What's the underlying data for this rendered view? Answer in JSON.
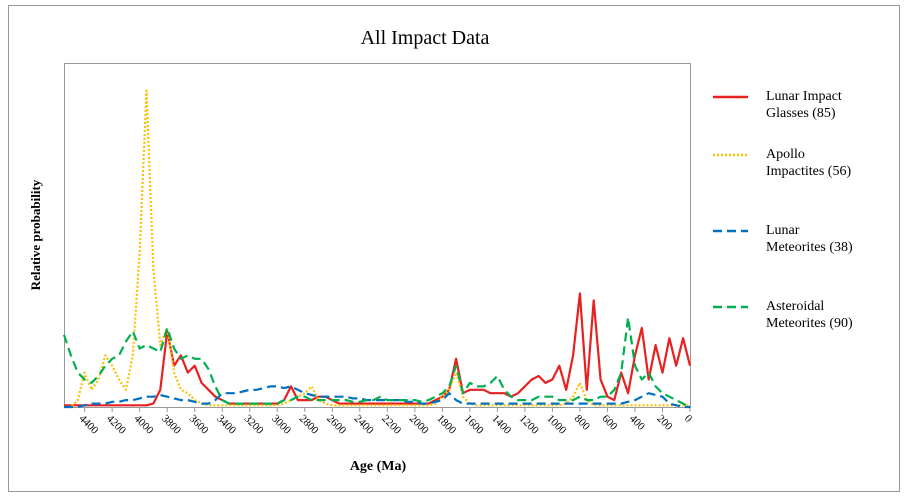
{
  "chart_data": {
    "type": "line",
    "title": "All Impact Data",
    "x_label": "Age (Ma)",
    "y_label": "Relative probability",
    "x": [
      4550,
      4500,
      4450,
      4400,
      4350,
      4300,
      4250,
      4200,
      4150,
      4100,
      4050,
      4000,
      3950,
      3900,
      3850,
      3800,
      3750,
      3700,
      3650,
      3600,
      3550,
      3500,
      3450,
      3400,
      3350,
      3300,
      3250,
      3200,
      3150,
      3100,
      3050,
      3000,
      2950,
      2900,
      2850,
      2800,
      2750,
      2700,
      2650,
      2600,
      2550,
      2500,
      2450,
      2400,
      2350,
      2300,
      2250,
      2200,
      2150,
      2100,
      2050,
      2000,
      1950,
      1900,
      1850,
      1800,
      1750,
      1700,
      1650,
      1600,
      1550,
      1500,
      1450,
      1400,
      1350,
      1300,
      1250,
      1200,
      1150,
      1100,
      1050,
      1000,
      950,
      900,
      850,
      800,
      750,
      700,
      650,
      600,
      550,
      500,
      450,
      400,
      350,
      300,
      250,
      200,
      150,
      100,
      50,
      0
    ],
    "series": [
      {
        "name": "Lunar Impact Glasses (85)",
        "color": "#e8201f",
        "linestyle": "solid",
        "values": [
          0.005,
          0.005,
          0.005,
          0.005,
          0.005,
          0.005,
          0.005,
          0.005,
          0.005,
          0.005,
          0.005,
          0.005,
          0.005,
          0.01,
          0.05,
          0.22,
          0.12,
          0.15,
          0.1,
          0.12,
          0.07,
          0.05,
          0.03,
          0.02,
          0.01,
          0.01,
          0.01,
          0.01,
          0.01,
          0.01,
          0.01,
          0.01,
          0.02,
          0.06,
          0.02,
          0.02,
          0.02,
          0.03,
          0.03,
          0.02,
          0.01,
          0.01,
          0.01,
          0.01,
          0.01,
          0.01,
          0.01,
          0.01,
          0.01,
          0.01,
          0.01,
          0.01,
          0.01,
          0.01,
          0.02,
          0.03,
          0.05,
          0.14,
          0.04,
          0.05,
          0.05,
          0.05,
          0.04,
          0.04,
          0.04,
          0.03,
          0.04,
          0.06,
          0.08,
          0.09,
          0.07,
          0.08,
          0.12,
          0.05,
          0.15,
          0.33,
          0.05,
          0.31,
          0.08,
          0.03,
          0.02,
          0.1,
          0.04,
          0.15,
          0.23,
          0.08,
          0.18,
          0.1,
          0.2,
          0.12,
          0.2,
          0.12
        ]
      },
      {
        "name": "Apollo Impactites (56)",
        "color": "#ffc000",
        "linestyle": "dotted",
        "values": [
          0,
          0,
          0.02,
          0.1,
          0.05,
          0.08,
          0.15,
          0.12,
          0.08,
          0.05,
          0.15,
          0.45,
          0.92,
          0.4,
          0.18,
          0.23,
          0.1,
          0.05,
          0.04,
          0.02,
          0.01,
          0.005,
          0.005,
          0.005,
          0.005,
          0.005,
          0.005,
          0.005,
          0.005,
          0.005,
          0.005,
          0.005,
          0.01,
          0.02,
          0.03,
          0.04,
          0.06,
          0.02,
          0.01,
          0.005,
          0.005,
          0.005,
          0.005,
          0.005,
          0.005,
          0.005,
          0.005,
          0.005,
          0.005,
          0.005,
          0.005,
          0.005,
          0.005,
          0.005,
          0.01,
          0.03,
          0.05,
          0.1,
          0.03,
          0.01,
          0.005,
          0.005,
          0.005,
          0.005,
          0.005,
          0.005,
          0.005,
          0.005,
          0.005,
          0.005,
          0.005,
          0.005,
          0.005,
          0.01,
          0.03,
          0.07,
          0.02,
          0.005,
          0.005,
          0.005,
          0.005,
          0.005,
          0.005,
          0.005,
          0.005,
          0.005,
          0.005,
          0.005,
          0.005,
          0.005,
          0.005,
          0.005
        ]
      },
      {
        "name": "Lunar Meteorites (38)",
        "color": "#0070c0",
        "linestyle": "dashed",
        "values": [
          0,
          0,
          0,
          0.005,
          0.01,
          0.01,
          0.01,
          0.015,
          0.015,
          0.02,
          0.02,
          0.025,
          0.03,
          0.03,
          0.035,
          0.03,
          0.025,
          0.02,
          0.02,
          0.015,
          0.01,
          0.01,
          0.02,
          0.04,
          0.04,
          0.04,
          0.045,
          0.05,
          0.05,
          0.055,
          0.06,
          0.06,
          0.055,
          0.06,
          0.05,
          0.04,
          0.035,
          0.03,
          0.03,
          0.03,
          0.03,
          0.03,
          0.025,
          0.025,
          0.02,
          0.02,
          0.02,
          0.02,
          0.02,
          0.02,
          0.015,
          0.015,
          0.01,
          0.01,
          0.015,
          0.02,
          0.04,
          0.02,
          0.01,
          0.01,
          0.01,
          0.01,
          0.01,
          0.01,
          0.01,
          0.01,
          0.01,
          0.01,
          0.01,
          0.01,
          0.01,
          0.01,
          0.01,
          0.01,
          0.01,
          0.01,
          0.01,
          0.01,
          0.01,
          0.01,
          0.01,
          0.01,
          0.015,
          0.02,
          0.03,
          0.04,
          0.035,
          0.03,
          0.01,
          0.005,
          0,
          0
        ]
      },
      {
        "name": "Asteroidal Meteorites (90)",
        "color": "#00b050",
        "linestyle": "dashed",
        "values": [
          0.21,
          0.15,
          0.1,
          0.08,
          0.07,
          0.09,
          0.12,
          0.14,
          0.15,
          0.19,
          0.22,
          0.17,
          0.18,
          0.17,
          0.16,
          0.23,
          0.17,
          0.14,
          0.15,
          0.14,
          0.14,
          0.11,
          0.06,
          0.02,
          0.01,
          0.01,
          0.01,
          0.01,
          0.01,
          0.01,
          0.01,
          0.01,
          0.02,
          0.02,
          0.03,
          0.03,
          0.02,
          0.02,
          0.02,
          0.02,
          0.02,
          0.02,
          0.015,
          0.015,
          0.02,
          0.02,
          0.03,
          0.02,
          0.02,
          0.02,
          0.02,
          0.02,
          0.015,
          0.02,
          0.03,
          0.04,
          0.06,
          0.12,
          0.04,
          0.07,
          0.06,
          0.06,
          0.07,
          0.09,
          0.05,
          0.03,
          0.02,
          0.02,
          0.02,
          0.03,
          0.03,
          0.03,
          0.02,
          0.02,
          0.02,
          0.03,
          0.02,
          0.02,
          0.03,
          0.03,
          0.05,
          0.1,
          0.26,
          0.12,
          0.08,
          0.1,
          0.06,
          0.04,
          0.03,
          0.02,
          0.01,
          0
        ]
      }
    ],
    "xlim": [
      4550,
      0
    ],
    "ylim": [
      0,
      1
    ],
    "xticks": [
      4400,
      4200,
      4000,
      3800,
      3600,
      3400,
      3200,
      3000,
      2800,
      2600,
      2400,
      2200,
      2000,
      1800,
      1600,
      1400,
      1200,
      1000,
      800,
      600,
      400,
      200,
      0
    ],
    "legend": "right"
  }
}
